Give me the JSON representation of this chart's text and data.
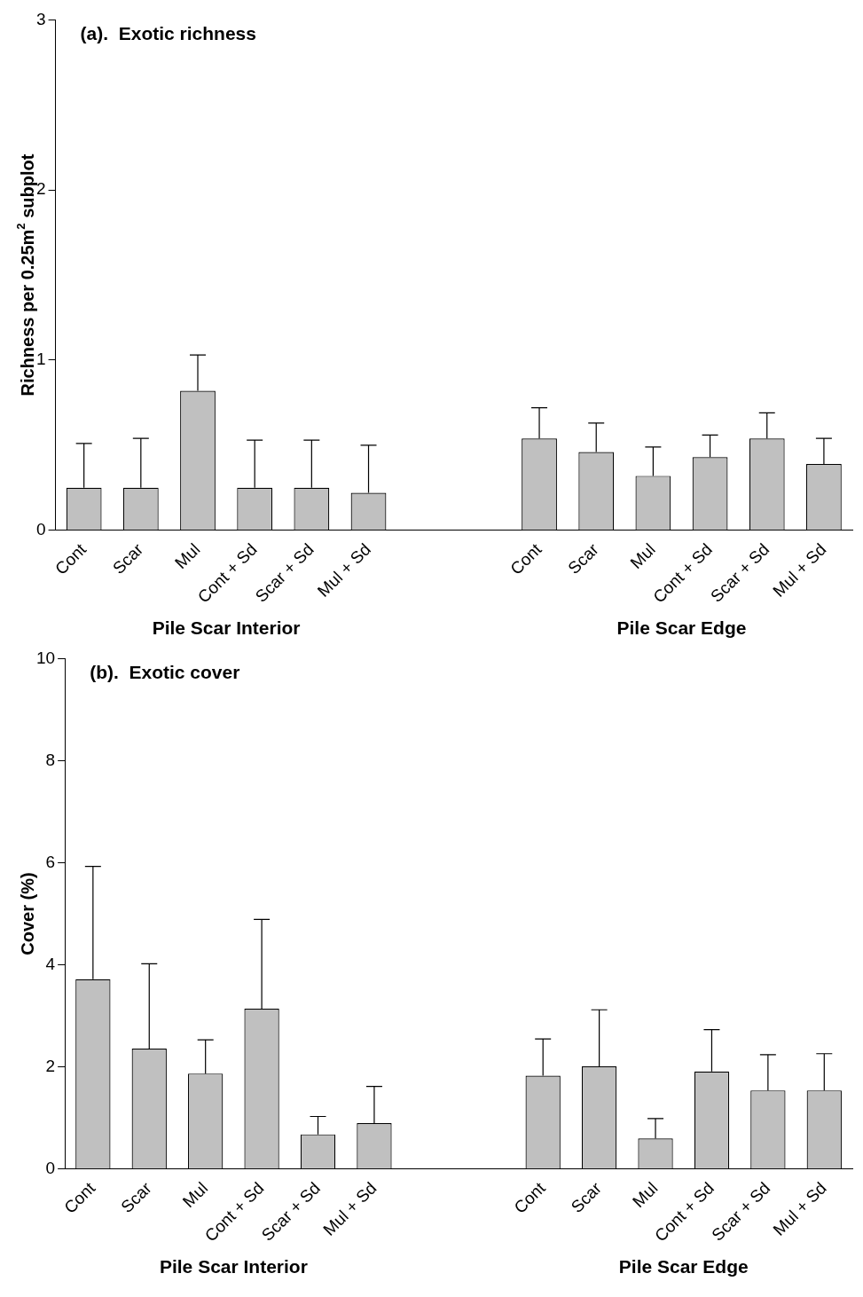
{
  "chart_data": [
    {
      "type": "bar",
      "title": "(a).  Exotic richness",
      "ylabel": "Richness per 0.25m$^{2}$ subplot",
      "categories": [
        "Cont",
        "Scar",
        "Mul",
        "Cont + Sd",
        "Scar + Sd",
        "Mul + Sd",
        null,
        null,
        "Cont",
        "Scar",
        "Mul",
        "Cont + Sd",
        "Scar + Sd",
        "Mul + Sd"
      ],
      "values": [
        0.25,
        0.25,
        0.82,
        0.25,
        0.25,
        0.22,
        null,
        null,
        0.54,
        0.46,
        0.32,
        0.43,
        0.54,
        0.39
      ],
      "errors": [
        [
          0.25,
          0.51
        ],
        [
          0.25,
          0.54
        ],
        [
          0.82,
          1.03
        ],
        [
          0.25,
          0.53
        ],
        [
          0.25,
          0.53
        ],
        [
          0.22,
          0.5
        ],
        null,
        null,
        [
          0.54,
          0.72
        ],
        [
          0.46,
          0.63
        ],
        [
          0.32,
          0.49
        ],
        [
          0.43,
          0.56
        ],
        [
          0.54,
          0.69
        ],
        [
          0.39,
          0.54
        ]
      ],
      "color": "#c0c0c0",
      "ylim": [
        0,
        3
      ],
      "yticks": [
        0,
        1,
        2,
        3
      ],
      "grid": false,
      "annotations": [
        "Pile Scar Interior",
        "Pile Scar Edge"
      ]
    },
    {
      "type": "bar",
      "title": "(b).  Exotic cover",
      "ylabel": "Cover (%)",
      "categories": [
        "Cont",
        "Scar",
        "Mul",
        "Cont + Sd",
        "Scar + Sd",
        "Mul + Sd",
        null,
        null,
        "Cont",
        "Scar",
        "Mul",
        "Cont + Sd",
        "Scar + Sd",
        "Mul + Sd"
      ],
      "values": [
        3.72,
        2.36,
        1.87,
        3.14,
        0.68,
        0.9,
        null,
        null,
        1.83,
        2.01,
        0.6,
        1.91,
        1.54,
        1.54
      ],
      "errors": [
        [
          3.72,
          5.93
        ],
        [
          2.36,
          4.02
        ],
        [
          1.87,
          2.53
        ],
        [
          3.14,
          4.89
        ],
        [
          0.68,
          1.03
        ],
        [
          0.9,
          1.62
        ],
        null,
        null,
        [
          1.83,
          2.55
        ],
        [
          2.01,
          3.12
        ],
        [
          0.6,
          0.99
        ],
        [
          1.91,
          2.73
        ],
        [
          1.54,
          2.24
        ],
        [
          1.54,
          2.26
        ]
      ],
      "color": "#c0c0c0",
      "ylim": [
        0,
        10
      ],
      "yticks": [
        0,
        2,
        4,
        6,
        8,
        10
      ],
      "grid": false,
      "annotations": [
        "Pile Scar Interior",
        "Pile Scar Edge"
      ]
    }
  ]
}
